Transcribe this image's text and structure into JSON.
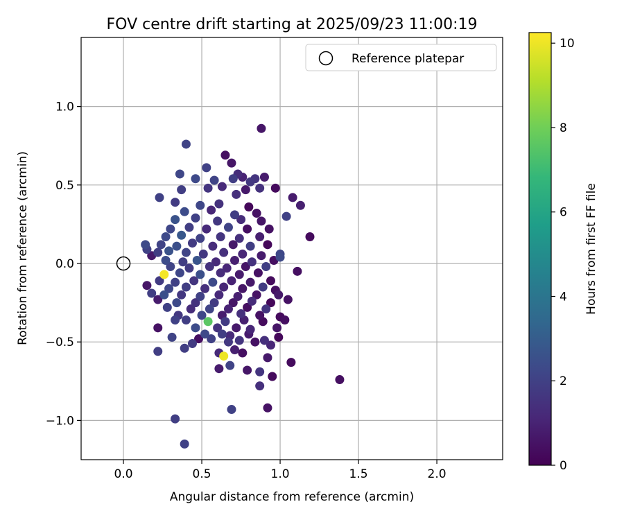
{
  "chart_data": {
    "type": "scatter",
    "title": "FOV centre drift starting at 2025/09/23 11:00:19",
    "xlabel": "Angular distance from reference (arcmin)",
    "ylabel": "Rotation from reference (arcmin)",
    "xlim": [
      -0.27,
      2.42
    ],
    "ylim": [
      -1.25,
      1.44
    ],
    "xticks": [
      0.0,
      0.5,
      1.0,
      1.5,
      2.0
    ],
    "xtick_labels": [
      "0.0",
      "0.5",
      "1.0",
      "1.5",
      "2.0"
    ],
    "yticks": [
      -1.0,
      -0.5,
      0.0,
      0.5,
      1.0
    ],
    "ytick_labels": [
      "−1.0",
      "−0.5",
      "0.0",
      "0.5",
      "1.0"
    ],
    "grid": true,
    "legend": {
      "position": "top-right",
      "entries": [
        {
          "label": "Reference platepar",
          "marker": "open-circle"
        }
      ]
    },
    "reference_point": {
      "x": 0.0,
      "y": 0.0
    },
    "colorbar": {
      "label": "Hours from first FF file",
      "range": [
        0,
        10.25
      ],
      "ticks": [
        0,
        2,
        4,
        6,
        8,
        10
      ],
      "tick_labels": [
        "0",
        "2",
        "4",
        "6",
        "8",
        "10"
      ],
      "colormap": [
        "#440154",
        "#482878",
        "#3e4989",
        "#31688e",
        "#26828e",
        "#1f9e89",
        "#35b779",
        "#6ece58",
        "#b5de2b",
        "#fde725"
      ]
    },
    "points": [
      [
        0.88,
        0.86,
        0.6
      ],
      [
        0.4,
        0.76,
        2.1
      ],
      [
        0.65,
        0.69,
        0.4
      ],
      [
        0.69,
        0.64,
        0.6
      ],
      [
        0.36,
        0.57,
        2.2
      ],
      [
        0.53,
        0.61,
        2.0
      ],
      [
        0.73,
        0.57,
        1.3
      ],
      [
        0.76,
        0.55,
        1.0
      ],
      [
        0.84,
        0.54,
        1.6
      ],
      [
        0.9,
        0.55,
        0.8
      ],
      [
        0.46,
        0.54,
        2.3
      ],
      [
        0.58,
        0.53,
        2.1
      ],
      [
        0.7,
        0.54,
        1.9
      ],
      [
        0.81,
        0.52,
        1.7
      ],
      [
        0.37,
        0.47,
        1.9
      ],
      [
        0.54,
        0.48,
        1.6
      ],
      [
        0.63,
        0.49,
        1.2
      ],
      [
        0.78,
        0.47,
        0.7
      ],
      [
        0.87,
        0.48,
        1.5
      ],
      [
        0.97,
        0.48,
        0.3
      ],
      [
        0.23,
        0.42,
        2.0
      ],
      [
        0.72,
        0.44,
        1.4
      ],
      [
        1.08,
        0.42,
        0.8
      ],
      [
        1.13,
        0.37,
        0.9
      ],
      [
        0.33,
        0.39,
        1.8
      ],
      [
        0.49,
        0.37,
        2.2
      ],
      [
        0.61,
        0.38,
        1.5
      ],
      [
        0.8,
        0.36,
        0.2
      ],
      [
        1.04,
        0.3,
        2.0
      ],
      [
        0.39,
        0.33,
        2.4
      ],
      [
        0.56,
        0.34,
        1.1
      ],
      [
        0.71,
        0.31,
        1.9
      ],
      [
        0.85,
        0.32,
        0.5
      ],
      [
        0.33,
        0.28,
        2.6
      ],
      [
        0.46,
        0.29,
        2.0
      ],
      [
        0.6,
        0.27,
        1.7
      ],
      [
        0.75,
        0.28,
        1.3
      ],
      [
        0.88,
        0.27,
        0.6
      ],
      [
        0.3,
        0.22,
        2.2
      ],
      [
        0.42,
        0.23,
        1.9
      ],
      [
        0.53,
        0.22,
        1.2
      ],
      [
        0.67,
        0.23,
        2.1
      ],
      [
        0.79,
        0.22,
        0.4
      ],
      [
        0.93,
        0.22,
        0.5
      ],
      [
        1.19,
        0.17,
        0.3
      ],
      [
        0.27,
        0.17,
        2.3
      ],
      [
        0.37,
        0.18,
        2.8
      ],
      [
        0.49,
        0.16,
        2.0
      ],
      [
        0.62,
        0.17,
        1.6
      ],
      [
        0.74,
        0.16,
        1.4
      ],
      [
        0.87,
        0.17,
        0.9
      ],
      [
        0.24,
        0.12,
        2.1
      ],
      [
        0.34,
        0.11,
        2.5
      ],
      [
        0.44,
        0.13,
        1.8
      ],
      [
        0.57,
        0.11,
        1.3
      ],
      [
        0.7,
        0.12,
        0.7
      ],
      [
        0.81,
        0.11,
        1.9
      ],
      [
        0.92,
        0.12,
        0.2
      ],
      [
        0.14,
        0.12,
        2.3
      ],
      [
        0.15,
        0.09,
        2.0
      ],
      [
        0.22,
        0.07,
        1.9
      ],
      [
        0.29,
        0.08,
        2.6
      ],
      [
        0.4,
        0.07,
        2.1
      ],
      [
        0.51,
        0.06,
        1.7
      ],
      [
        0.64,
        0.07,
        1.4
      ],
      [
        0.76,
        0.06,
        1.1
      ],
      [
        0.88,
        0.05,
        0.8
      ],
      [
        1.0,
        0.06,
        2.2
      ],
      [
        0.18,
        0.05,
        0.7
      ],
      [
        0.27,
        0.02,
        2.4
      ],
      [
        0.38,
        0.01,
        1.9
      ],
      [
        0.47,
        0.02,
        2.7
      ],
      [
        0.59,
        0.01,
        1.2
      ],
      [
        0.71,
        0.02,
        0.9
      ],
      [
        0.82,
        0.01,
        1.5
      ],
      [
        0.96,
        0.02,
        0.4
      ],
      [
        1.0,
        0.04,
        2.3
      ],
      [
        0.3,
        -0.02,
        2.1
      ],
      [
        0.42,
        -0.03,
        1.8
      ],
      [
        0.55,
        -0.02,
        1.5
      ],
      [
        0.66,
        -0.03,
        1.1
      ],
      [
        0.78,
        -0.02,
        0.6
      ],
      [
        0.91,
        -0.02,
        1.9
      ],
      [
        0.26,
        -0.07,
        10.1
      ],
      [
        0.36,
        -0.06,
        2.2
      ],
      [
        0.49,
        -0.07,
        2.5
      ],
      [
        0.62,
        -0.06,
        1.3
      ],
      [
        0.74,
        -0.07,
        0.8
      ],
      [
        0.86,
        -0.06,
        0.5
      ],
      [
        1.11,
        -0.05,
        0.4
      ],
      [
        0.23,
        -0.11,
        1.8
      ],
      [
        0.33,
        -0.12,
        2.0
      ],
      [
        0.45,
        -0.11,
        1.6
      ],
      [
        0.57,
        -0.12,
        2.3
      ],
      [
        0.69,
        -0.11,
        1.0
      ],
      [
        0.81,
        -0.12,
        0.7
      ],
      [
        0.94,
        -0.11,
        0.3
      ],
      [
        0.15,
        -0.14,
        0.6
      ],
      [
        0.29,
        -0.16,
        2.2
      ],
      [
        0.4,
        -0.15,
        1.9
      ],
      [
        0.52,
        -0.16,
        1.4
      ],
      [
        0.64,
        -0.15,
        1.1
      ],
      [
        0.76,
        -0.16,
        0.6
      ],
      [
        0.89,
        -0.15,
        1.8
      ],
      [
        0.97,
        -0.17,
        0.4
      ],
      [
        0.18,
        -0.19,
        1.9
      ],
      [
        0.26,
        -0.2,
        2.5
      ],
      [
        0.37,
        -0.2,
        1.7
      ],
      [
        0.49,
        -0.21,
        2.0
      ],
      [
        0.61,
        -0.2,
        1.2
      ],
      [
        0.73,
        -0.21,
        0.9
      ],
      [
        0.85,
        -0.2,
        0.5
      ],
      [
        0.99,
        -0.2,
        0.7
      ],
      [
        0.22,
        -0.23,
        0.8
      ],
      [
        0.34,
        -0.25,
        2.3
      ],
      [
        0.46,
        -0.25,
        1.5
      ],
      [
        0.58,
        -0.25,
        1.8
      ],
      [
        0.7,
        -0.25,
        0.6
      ],
      [
        0.82,
        -0.24,
        1.3
      ],
      [
        0.94,
        -0.25,
        0.2
      ],
      [
        1.05,
        -0.23,
        0.5
      ],
      [
        0.28,
        -0.28,
        2.0
      ],
      [
        0.43,
        -0.29,
        1.3
      ],
      [
        0.55,
        -0.29,
        2.1
      ],
      [
        0.67,
        -0.29,
        1.0
      ],
      [
        0.79,
        -0.28,
        0.4
      ],
      [
        0.91,
        -0.29,
        1.6
      ],
      [
        0.35,
        -0.33,
        1.7
      ],
      [
        0.5,
        -0.33,
        2.2
      ],
      [
        0.63,
        -0.33,
        0.8
      ],
      [
        0.75,
        -0.32,
        1.4
      ],
      [
        0.87,
        -0.33,
        0.5
      ],
      [
        1.0,
        -0.34,
        0.3
      ],
      [
        0.33,
        -0.36,
        2.0
      ],
      [
        0.4,
        -0.36,
        1.9
      ],
      [
        0.54,
        -0.37,
        7.6
      ],
      [
        0.65,
        -0.37,
        1.8
      ],
      [
        0.77,
        -0.36,
        0.9
      ],
      [
        0.89,
        -0.37,
        0.3
      ],
      [
        1.03,
        -0.36,
        0.4
      ],
      [
        0.46,
        -0.41,
        2.4
      ],
      [
        0.6,
        -0.41,
        1.5
      ],
      [
        0.72,
        -0.41,
        0.7
      ],
      [
        0.81,
        -0.42,
        1.1
      ],
      [
        0.98,
        -0.41,
        0.6
      ],
      [
        0.22,
        -0.41,
        0.5
      ],
      [
        0.52,
        -0.45,
        2.3
      ],
      [
        0.63,
        -0.45,
        1.9
      ],
      [
        0.68,
        -0.46,
        1.2
      ],
      [
        0.8,
        -0.45,
        0.8
      ],
      [
        0.99,
        -0.47,
        0.2
      ],
      [
        0.31,
        -0.47,
        2.1
      ],
      [
        0.48,
        -0.48,
        0.4
      ],
      [
        0.56,
        -0.48,
        2.0
      ],
      [
        0.74,
        -0.49,
        1.6
      ],
      [
        0.84,
        -0.5,
        0.5
      ],
      [
        0.9,
        -0.49,
        1.4
      ],
      [
        0.44,
        -0.51,
        1.8
      ],
      [
        0.67,
        -0.5,
        1.7
      ],
      [
        0.39,
        -0.54,
        1.9
      ],
      [
        0.94,
        -0.52,
        1.1
      ],
      [
        0.22,
        -0.56,
        1.9
      ],
      [
        0.61,
        -0.57,
        1.2
      ],
      [
        0.71,
        -0.55,
        0.9
      ],
      [
        0.76,
        -0.57,
        0.4
      ],
      [
        0.64,
        -0.59,
        10.0
      ],
      [
        0.92,
        -0.6,
        0.7
      ],
      [
        1.07,
        -0.63,
        0.3
      ],
      [
        0.61,
        -0.67,
        0.8
      ],
      [
        0.68,
        -0.65,
        2.1
      ],
      [
        0.79,
        -0.68,
        0.6
      ],
      [
        0.87,
        -0.69,
        1.6
      ],
      [
        0.95,
        -0.72,
        0.3
      ],
      [
        0.87,
        -0.78,
        1.4
      ],
      [
        1.38,
        -0.74,
        0.4
      ],
      [
        0.69,
        -0.93,
        2.0
      ],
      [
        0.92,
        -0.92,
        0.5
      ],
      [
        0.33,
        -0.99,
        1.9
      ],
      [
        0.39,
        -1.15,
        2.0
      ]
    ]
  }
}
